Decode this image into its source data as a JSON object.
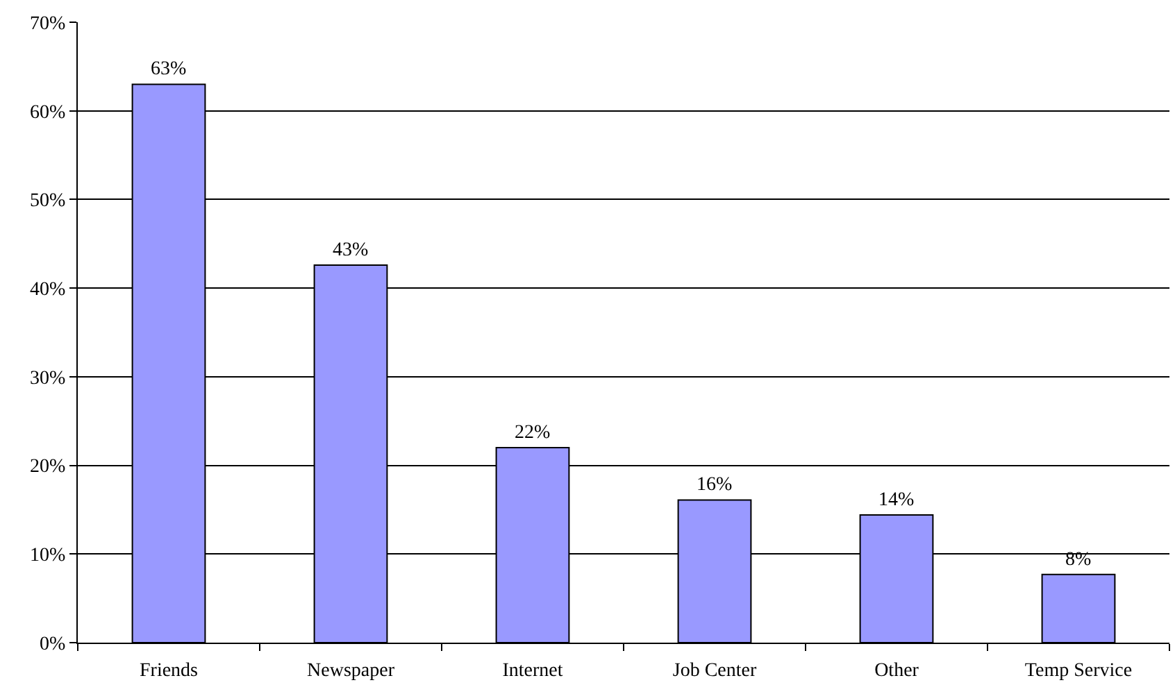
{
  "chart_data": {
    "type": "bar",
    "categories": [
      "Friends",
      "Newspaper",
      "Internet",
      "Job Center",
      "Other",
      "Temp Service"
    ],
    "values": [
      63,
      42.6,
      22,
      16.1,
      14.4,
      7.7
    ],
    "value_labels": [
      "63%",
      "43%",
      "22%",
      "16%",
      "14%",
      "8%"
    ],
    "color": "#9999ff",
    "ylim": [
      0,
      70
    ],
    "yticks": [
      {
        "value": 0,
        "label": "0%"
      },
      {
        "value": 10,
        "label": "10%"
      },
      {
        "value": 20,
        "label": "20%"
      },
      {
        "value": 30,
        "label": "30%"
      },
      {
        "value": 40,
        "label": "40%"
      },
      {
        "value": 50,
        "label": "50%"
      },
      {
        "value": 60,
        "label": "60%"
      },
      {
        "value": 70,
        "label": "70%"
      }
    ],
    "grid": "y",
    "legend": false
  }
}
